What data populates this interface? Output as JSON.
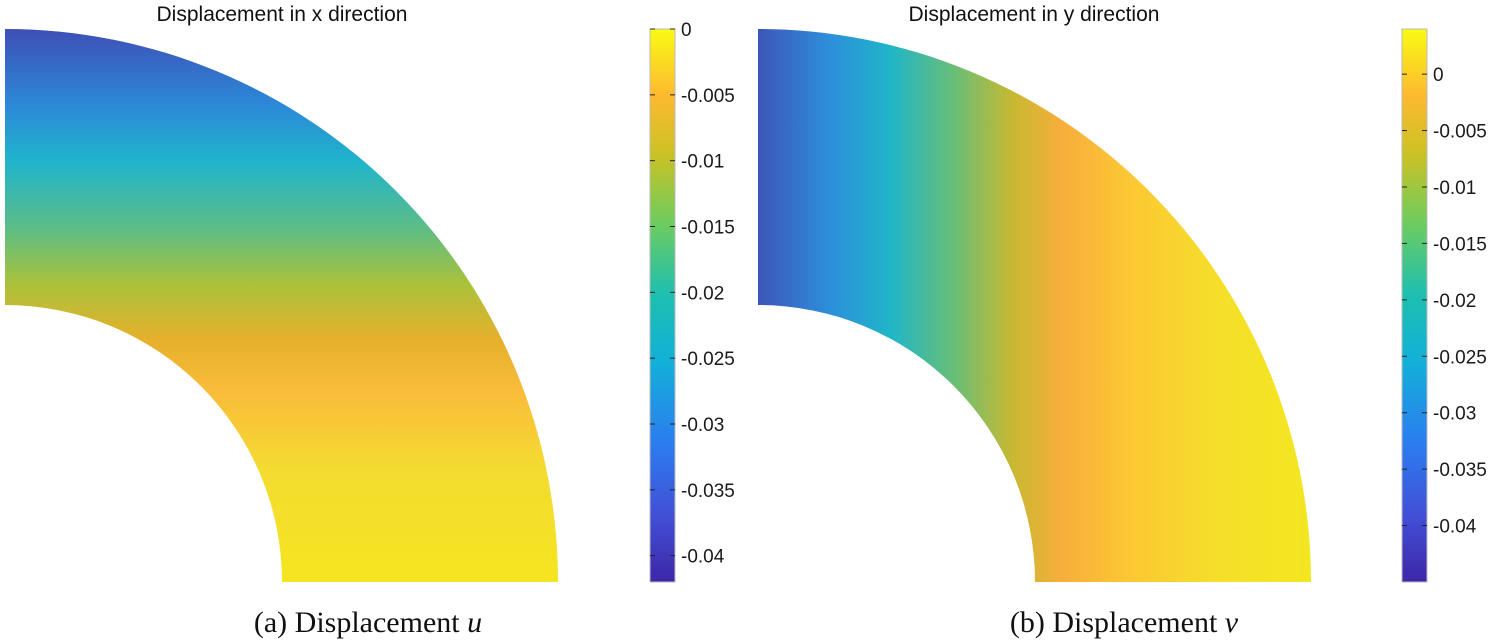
{
  "chart_data": [
    {
      "type": "heatmap",
      "title": "Displacement in x direction",
      "caption_prefix": "(a) Displacement",
      "caption_var": "u",
      "domain": "quarter annulus",
      "colormap": "parula",
      "colorbar": {
        "range": [
          -0.042,
          0.0
        ],
        "ticks": [
          0,
          -0.005,
          -0.01,
          -0.015,
          -0.02,
          -0.025,
          -0.03,
          -0.035,
          -0.04
        ],
        "tick_labels": [
          "0",
          "-0.005",
          "-0.01",
          "-0.015",
          "-0.02",
          "-0.025",
          "-0.03",
          "-0.035",
          "-0.04"
        ],
        "placement": "right"
      },
      "field_samples": {
        "description_axis": "vertical",
        "levels": [
          {
            "position": "top",
            "value": -0.036
          },
          {
            "position": "upper-middle",
            "value": -0.024
          },
          {
            "position": "middle",
            "value": -0.014
          },
          {
            "position": "lower-middle",
            "value": -0.007
          },
          {
            "position": "bottom",
            "value": -0.001
          }
        ]
      }
    },
    {
      "type": "heatmap",
      "title": "Displacement in y direction",
      "caption_prefix": "(b) Displacement",
      "caption_var": "v",
      "domain": "quarter annulus",
      "colormap": "parula",
      "colorbar": {
        "range": [
          -0.045,
          0.004
        ],
        "ticks": [
          0,
          -0.005,
          -0.01,
          -0.015,
          -0.02,
          -0.025,
          -0.03,
          -0.035,
          -0.04
        ],
        "tick_labels": [
          "0",
          "-0.005",
          "-0.01",
          "-0.015",
          "-0.02",
          "-0.025",
          "-0.03",
          "-0.035",
          "-0.04"
        ],
        "placement": "right"
      },
      "field_samples": {
        "description_axis": "horizontal",
        "levels": [
          {
            "position": "left",
            "value": -0.035
          },
          {
            "position": "left-middle",
            "value": -0.022
          },
          {
            "position": "middle",
            "value": -0.01
          },
          {
            "position": "right-middle",
            "value": -0.004
          },
          {
            "position": "right",
            "value": 0.001
          }
        ]
      }
    }
  ]
}
